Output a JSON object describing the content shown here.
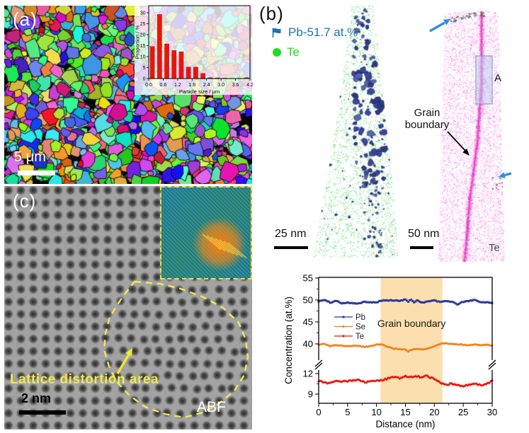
{
  "figure": {
    "panel_a": {
      "label": "(a)",
      "scale_bar_label": "5 μm"
    },
    "panel_b": {
      "label": "(b)",
      "legend": [
        {
          "icon": "flag-icon",
          "label": "Pb-51.7 at.%",
          "color": "#1a73b9"
        },
        {
          "icon": "dot-icon",
          "label": "Te",
          "color": "#1ddf1d"
        }
      ],
      "left_scale_bar_label": "25 nm",
      "right_scale_bar_label": "50 nm",
      "right_tip_species_label": "Te",
      "grain_boundary_label_line1": "Grain",
      "grain_boundary_label_line2": "boundary",
      "region_box_label": "A"
    },
    "panel_c": {
      "label": "(c)",
      "annotation": "Lattice distortion area",
      "scale_bar_label": "2 nm",
      "imaging_mode_label": "ABF"
    }
  },
  "chart_data": [
    {
      "type": "bar",
      "title": "",
      "xlabel": "Particle size / μm",
      "ylabel": "Proportion / %",
      "xlim": [
        0,
        4.2
      ],
      "ylim": [
        0,
        30
      ],
      "xticks": [
        0.0,
        0.6,
        1.2,
        1.8,
        2.4,
        3.0,
        3.6,
        4.2
      ],
      "yticks": [
        0,
        5,
        10,
        15,
        20,
        25,
        30
      ],
      "bar_color": "#e8150d",
      "bin_width": 0.3,
      "categories": [
        0.15,
        0.45,
        0.75,
        1.05,
        1.35,
        1.65,
        1.95,
        2.25,
        2.55,
        2.85,
        3.15,
        3.45,
        3.75,
        4.05
      ],
      "values": [
        14.7,
        29.3,
        15.9,
        12.9,
        12.3,
        5.3,
        5.3,
        2.4,
        0.5,
        0.4,
        0.3,
        0.2,
        0.2,
        0.5
      ]
    },
    {
      "type": "line",
      "xlabel": "Distance (nm)",
      "ylabel": "Concentration (at.%)",
      "xlim": [
        0,
        30
      ],
      "xticks": [
        0,
        5,
        10,
        15,
        20,
        25,
        30
      ],
      "yticks_top": [
        40,
        45,
        50,
        55
      ],
      "yticks_bottom": [
        9,
        12
      ],
      "axis_break": true,
      "legend_position": "upper-left-inside",
      "shaded_region": {
        "x0": 10.7,
        "x1": 21.4,
        "color": "#fbdfae",
        "label": "Grain boundary"
      },
      "series": [
        {
          "name": "Pb",
          "color": "#2b3a9c",
          "marker": "square",
          "axis": "top",
          "noise": 0.09,
          "points": [
            [
              0,
              49.7
            ],
            [
              1,
              50.0
            ],
            [
              2,
              49.4
            ],
            [
              3,
              49.8
            ],
            [
              4,
              49.3
            ],
            [
              5,
              49.4
            ],
            [
              6,
              49.3
            ],
            [
              7,
              49.2
            ],
            [
              8,
              49.6
            ],
            [
              9,
              49.5
            ],
            [
              10,
              49.5
            ],
            [
              11,
              49.9
            ],
            [
              12,
              49.9
            ],
            [
              13,
              49.9
            ],
            [
              14,
              49.8
            ],
            [
              15,
              50.1
            ],
            [
              15.5,
              49.6
            ],
            [
              16,
              50.1
            ],
            [
              16.5,
              49.5
            ],
            [
              17,
              49.9
            ],
            [
              18,
              49.4
            ],
            [
              19,
              49.7
            ],
            [
              20,
              49.9
            ],
            [
              21,
              49.5
            ],
            [
              22,
              49.8
            ],
            [
              23,
              49.6
            ],
            [
              24,
              49.0
            ],
            [
              25,
              49.6
            ],
            [
              26,
              49.8
            ],
            [
              27,
              50.0
            ],
            [
              28,
              49.5
            ],
            [
              29,
              49.5
            ],
            [
              30,
              49.3
            ]
          ]
        },
        {
          "name": "Se",
          "color": "#f58220",
          "marker": "circle",
          "axis": "top",
          "noise": 0.07,
          "points": [
            [
              0,
              39.8
            ],
            [
              1,
              40.0
            ],
            [
              2,
              39.5
            ],
            [
              3,
              39.7
            ],
            [
              4,
              39.6
            ],
            [
              5,
              39.4
            ],
            [
              6,
              39.6
            ],
            [
              7,
              39.5
            ],
            [
              8,
              39.3
            ],
            [
              9,
              39.5
            ],
            [
              10,
              39.8
            ],
            [
              11,
              39.9
            ],
            [
              12,
              39.3
            ],
            [
              13,
              38.9
            ],
            [
              14,
              38.8
            ],
            [
              15,
              38.7
            ],
            [
              15.5,
              38.3
            ],
            [
              16,
              38.7
            ],
            [
              17,
              38.8
            ],
            [
              18,
              38.7
            ],
            [
              19,
              39.0
            ],
            [
              20,
              39.4
            ],
            [
              21,
              40.0
            ],
            [
              22,
              40.1
            ],
            [
              23,
              40.0
            ],
            [
              24,
              39.9
            ],
            [
              25,
              39.8
            ],
            [
              26,
              39.7
            ],
            [
              27,
              39.9
            ],
            [
              28,
              39.7
            ],
            [
              29,
              39.8
            ],
            [
              30,
              39.6
            ]
          ]
        },
        {
          "name": "Te",
          "color": "#e8150d",
          "marker": "diamond",
          "axis": "bottom",
          "noise": 0.1,
          "points": [
            [
              0,
              10.9
            ],
            [
              1,
              10.7
            ],
            [
              2,
              10.6
            ],
            [
              3,
              10.9
            ],
            [
              4,
              10.8
            ],
            [
              5,
              10.9
            ],
            [
              6,
              11.0
            ],
            [
              7,
              11.1
            ],
            [
              8,
              10.7
            ],
            [
              9,
              10.9
            ],
            [
              10,
              10.9
            ],
            [
              11,
              11.0
            ],
            [
              12,
              11.3
            ],
            [
              13,
              11.5
            ],
            [
              14,
              11.3
            ],
            [
              15,
              11.6
            ],
            [
              16,
              11.5
            ],
            [
              17,
              11.6
            ],
            [
              18,
              11.4
            ],
            [
              18.5,
              11.8
            ],
            [
              19,
              11.5
            ],
            [
              20,
              11.2
            ],
            [
              21,
              10.7
            ],
            [
              22,
              10.4
            ],
            [
              23,
              10.5
            ],
            [
              24,
              10.3
            ],
            [
              25,
              10.2
            ],
            [
              26,
              10.4
            ],
            [
              27,
              10.5
            ],
            [
              28,
              10.3
            ],
            [
              29,
              10.5
            ],
            [
              30,
              10.9
            ]
          ]
        }
      ]
    }
  ]
}
